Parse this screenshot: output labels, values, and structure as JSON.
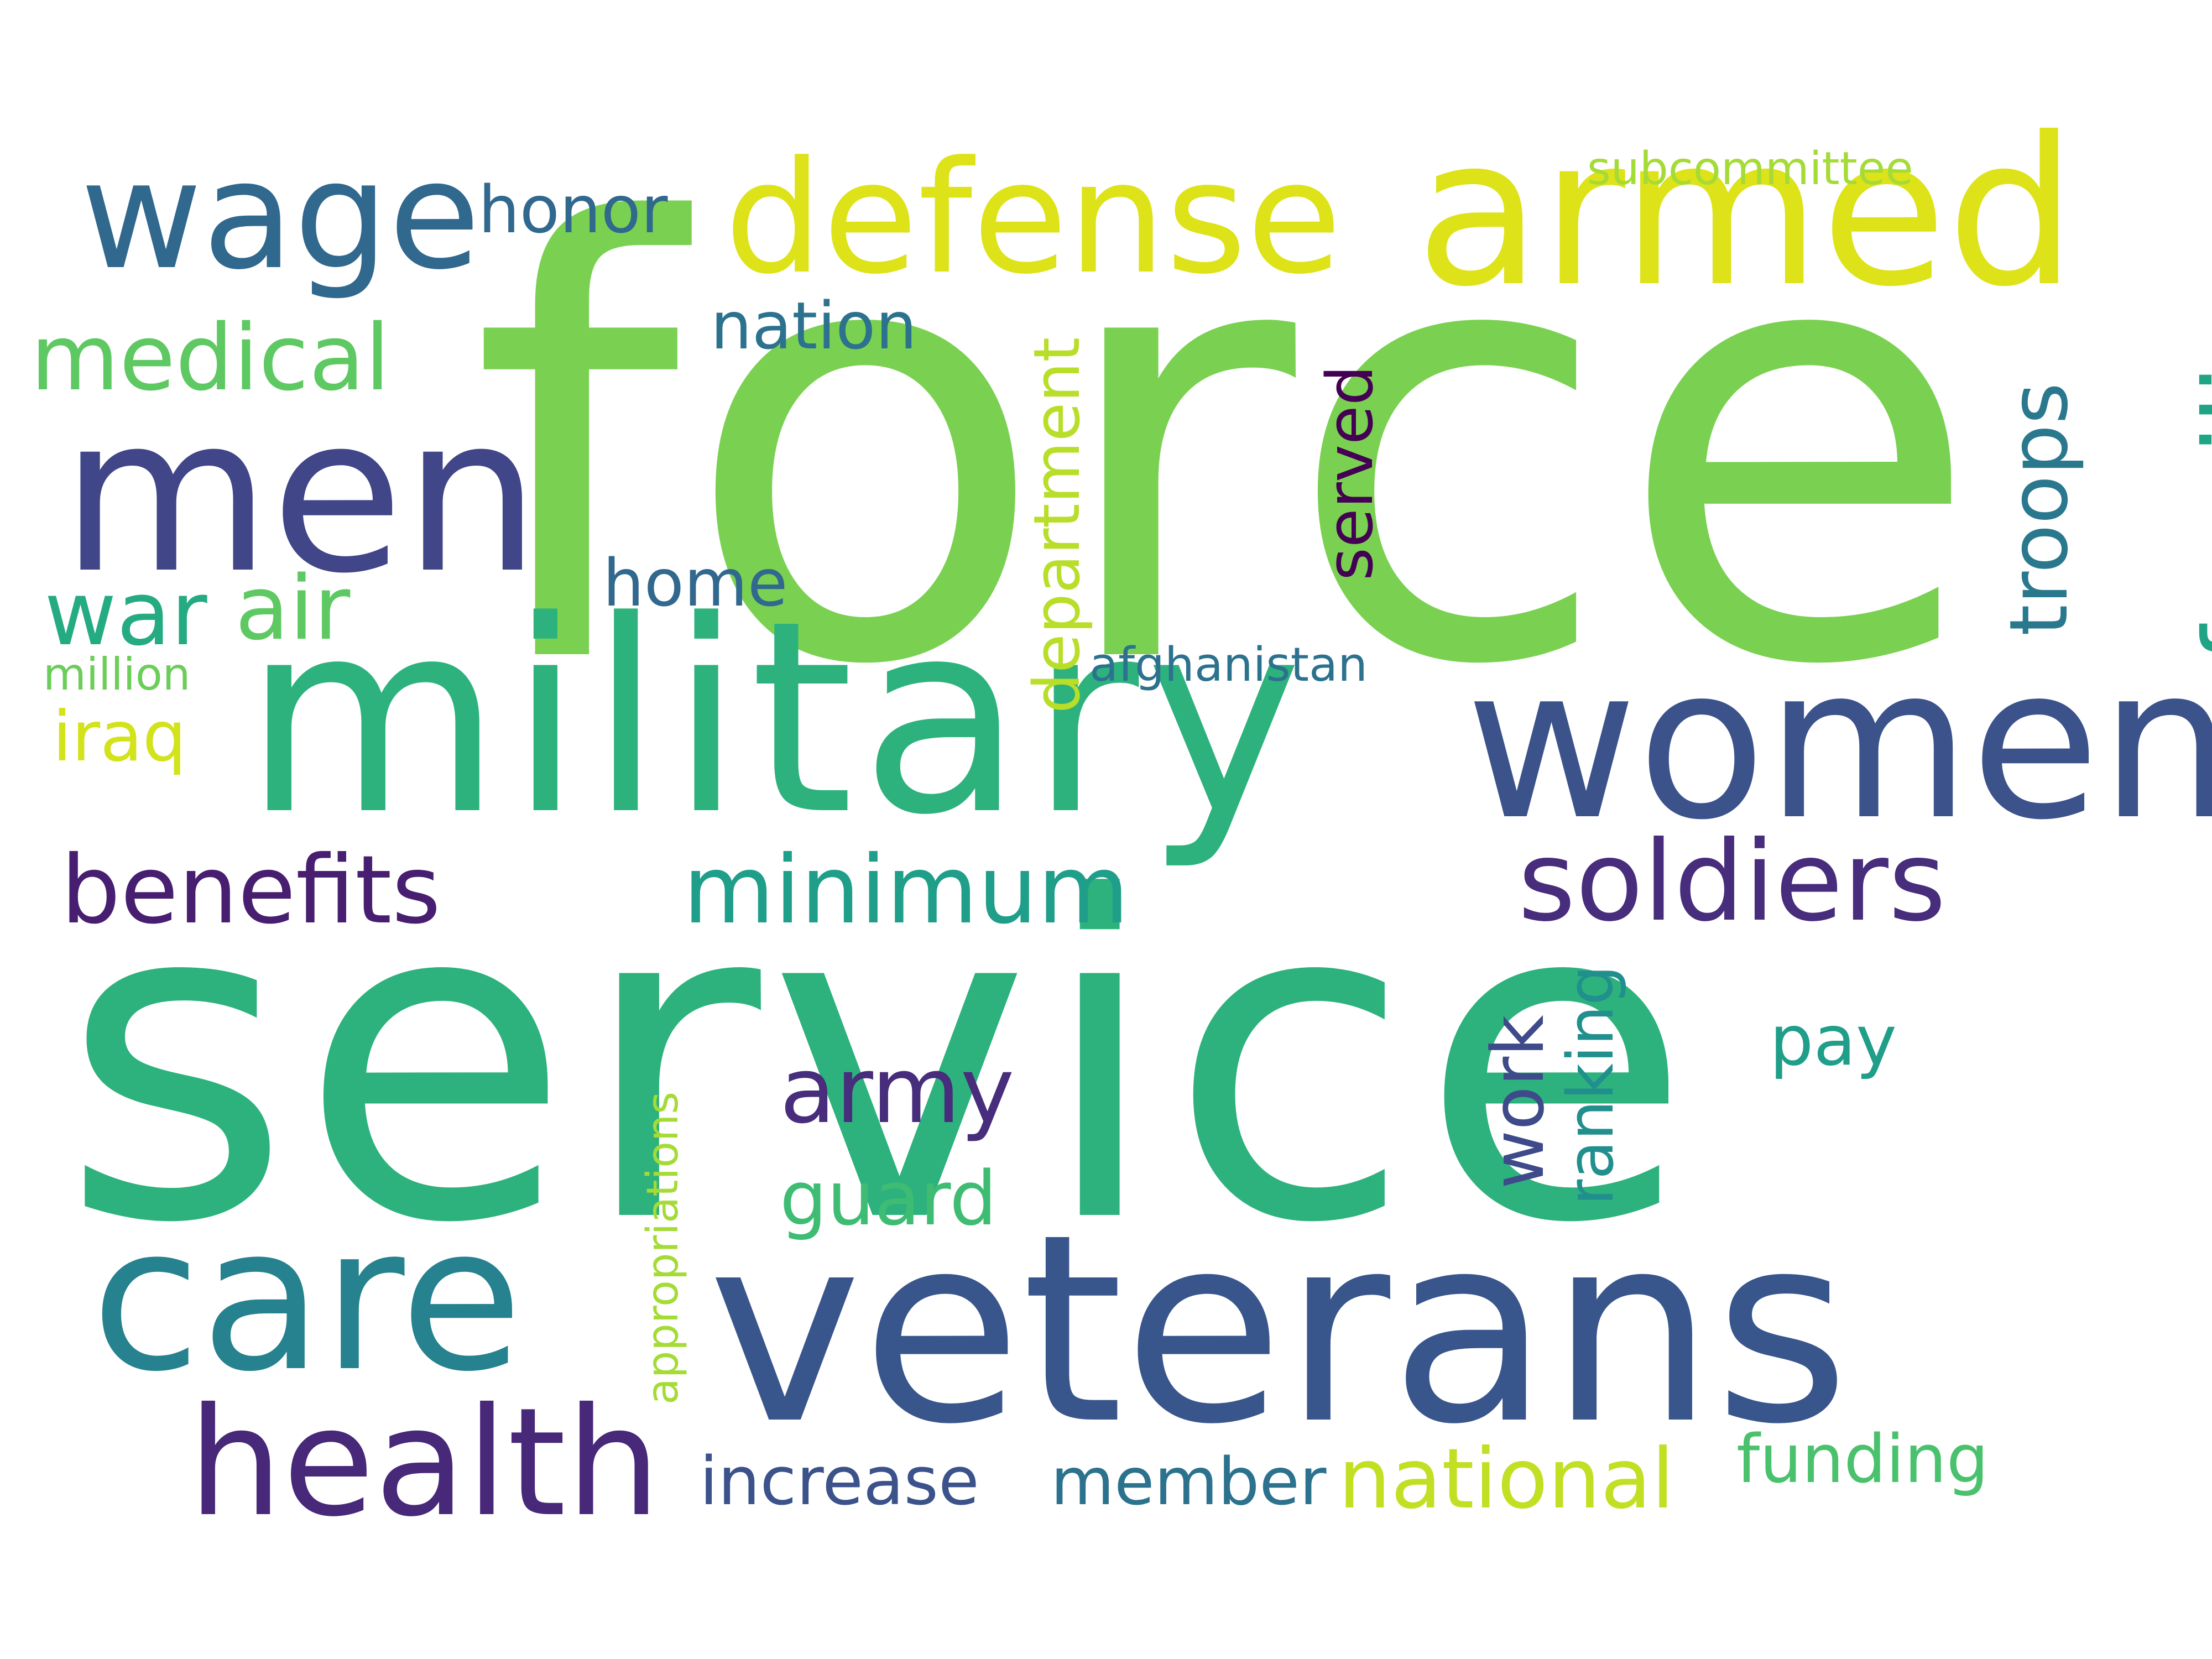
{
  "words": [
    {
      "text": "force",
      "color": "#7ad151",
      "rotation": "horizontal"
    },
    {
      "text": "service",
      "color": "#2db27d",
      "rotation": "horizontal"
    },
    {
      "text": "military",
      "color": "#2db27d",
      "rotation": "horizontal"
    },
    {
      "text": "veterans",
      "color": "#39568c",
      "rotation": "horizontal"
    },
    {
      "text": "armed",
      "color": "#dde318",
      "rotation": "horizontal"
    },
    {
      "text": "defense",
      "color": "#dde318",
      "rotation": "horizontal"
    },
    {
      "text": "women",
      "color": "#3b528b",
      "rotation": "horizontal"
    },
    {
      "text": "men",
      "color": "#404688",
      "rotation": "horizontal"
    },
    {
      "text": "care",
      "color": "#26828e",
      "rotation": "horizontal"
    },
    {
      "text": "wage",
      "color": "#31688e",
      "rotation": "horizontal"
    },
    {
      "text": "health",
      "color": "#482878",
      "rotation": "horizontal"
    },
    {
      "text": "soldiers",
      "color": "#472d7b",
      "rotation": "horizontal"
    },
    {
      "text": "families",
      "color": "#20a486",
      "rotation": "vertical"
    },
    {
      "text": "benefits",
      "color": "#481f70",
      "rotation": "horizontal"
    },
    {
      "text": "minimum",
      "color": "#1f9e89",
      "rotation": "horizontal"
    },
    {
      "text": "medical",
      "color": "#5ec962",
      "rotation": "horizontal"
    },
    {
      "text": "army",
      "color": "#472d7b",
      "rotation": "horizontal"
    },
    {
      "text": "national",
      "color": "#c2df23",
      "rotation": "horizontal"
    },
    {
      "text": "troops",
      "color": "#2a788e",
      "rotation": "vertical"
    },
    {
      "text": "air",
      "color": "#5ec962",
      "rotation": "horizontal"
    },
    {
      "text": "war",
      "color": "#25ab82",
      "rotation": "horizontal"
    },
    {
      "text": "guard",
      "color": "#3fbc73",
      "rotation": "horizontal"
    },
    {
      "text": "department",
      "color": "#b8de29",
      "rotation": "vertical"
    },
    {
      "text": "work",
      "color": "#3e4a89",
      "rotation": "vertical"
    },
    {
      "text": "ranking",
      "color": "#218f8d",
      "rotation": "vertical"
    },
    {
      "text": "served",
      "color": "#440154",
      "rotation": "vertical"
    },
    {
      "text": "iraq",
      "color": "#d2e21b",
      "rotation": "horizontal"
    },
    {
      "text": "funding",
      "color": "#4ac16d",
      "rotation": "horizontal"
    },
    {
      "text": "increase",
      "color": "#3b528b",
      "rotation": "horizontal"
    },
    {
      "text": "member",
      "color": "#2c728e",
      "rotation": "horizontal"
    },
    {
      "text": "nation",
      "color": "#2c728e",
      "rotation": "horizontal"
    },
    {
      "text": "honor",
      "color": "#31688e",
      "rotation": "horizontal"
    },
    {
      "text": "home",
      "color": "#31688e",
      "rotation": "horizontal"
    },
    {
      "text": "pay",
      "color": "#1f9e89",
      "rotation": "horizontal"
    },
    {
      "text": "afghanistan",
      "color": "#2c728e",
      "rotation": "horizontal"
    },
    {
      "text": "subcommittee",
      "color": "#a5db36",
      "rotation": "horizontal"
    },
    {
      "text": "appropriations",
      "color": "#a5db36",
      "rotation": "vertical"
    },
    {
      "text": "million",
      "color": "#6ccd5a",
      "rotation": "horizontal"
    }
  ]
}
